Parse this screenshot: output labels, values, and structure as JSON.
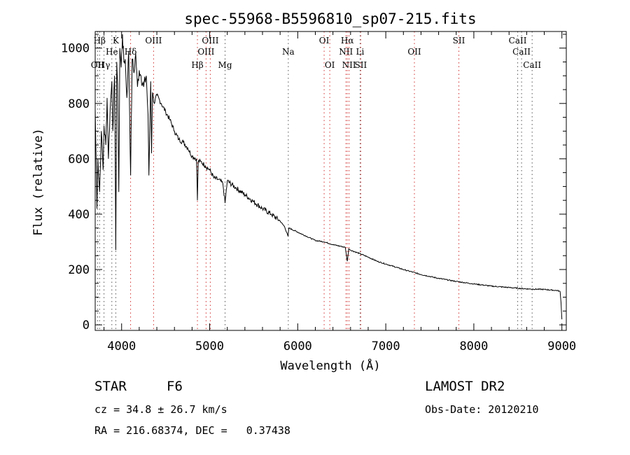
{
  "chart_data": {
    "type": "line",
    "title": "spec-55968-B5596810_sp07-215.fits",
    "xlabel": "Wavelength (Å)",
    "ylabel": "Flux (relative)",
    "xlim": [
      3700,
      9050
    ],
    "ylim": [
      -20,
      1060
    ],
    "xticks": [
      4000,
      5000,
      6000,
      7000,
      8000,
      9000
    ],
    "yticks": [
      0,
      200,
      400,
      600,
      800,
      1000
    ],
    "series": [
      {
        "x": [
          3700,
          3720,
          3730,
          3750,
          3770,
          3790,
          3800,
          3820,
          3835,
          3850,
          3870,
          3889,
          3900,
          3920,
          3934,
          3945,
          3955,
          3968,
          3980,
          3995,
          4010,
          4025,
          4040,
          4060,
          4080,
          4102,
          4120,
          4140,
          4160,
          4180,
          4200,
          4220,
          4250,
          4280,
          4300,
          4310,
          4330,
          4340,
          4350,
          4370,
          4400,
          4450,
          4500,
          4550,
          4600,
          4650,
          4700,
          4750,
          4800,
          4850,
          4861,
          4870,
          4900,
          4950,
          5000,
          5050,
          5100,
          5150,
          5175,
          5200,
          5300,
          5400,
          5500,
          5600,
          5700,
          5800,
          5850,
          5890,
          5900,
          6000,
          6100,
          6200,
          6300,
          6400,
          6500,
          6540,
          6563,
          6580,
          6600,
          6700,
          6800,
          6900,
          7000,
          7200,
          7400,
          7600,
          7800,
          8000,
          8200,
          8400,
          8600,
          8800,
          8950,
          8980,
          8990,
          9000
        ],
        "y": [
          780,
          420,
          600,
          480,
          700,
          560,
          720,
          650,
          820,
          600,
          780,
          880,
          700,
          900,
          270,
          950,
          870,
          480,
          1000,
          930,
          1050,
          950,
          960,
          820,
          990,
          540,
          960,
          910,
          980,
          860,
          920,
          900,
          860,
          900,
          760,
          540,
          880,
          620,
          840,
          800,
          830,
          800,
          770,
          740,
          700,
          670,
          660,
          640,
          610,
          600,
          450,
          590,
          590,
          575,
          560,
          530,
          525,
          510,
          440,
          520,
          495,
          470,
          445,
          420,
          400,
          375,
          355,
          320,
          350,
          335,
          320,
          305,
          300,
          290,
          283,
          280,
          230,
          275,
          270,
          258,
          245,
          230,
          220,
          200,
          182,
          168,
          157,
          148,
          140,
          135,
          130,
          128,
          124,
          120,
          80,
          20
        ]
      }
    ],
    "lines": [
      {
        "label": "Hβ",
        "w": 3750,
        "row": 0
      },
      {
        "label": "K",
        "w": 3934,
        "row": 0
      },
      {
        "label": "He",
        "w": 3889,
        "row": 1
      },
      {
        "label": "Hδ",
        "w": 4102,
        "row": 1
      },
      {
        "label": "OII",
        "w": 3727,
        "row": 2
      },
      {
        "label": "Hγ",
        "w": 3800,
        "row": 2
      },
      {
        "label": "OIII",
        "w": 4363,
        "row": 0
      },
      {
        "label": "OIII",
        "w": 5007,
        "row": 0
      },
      {
        "label": "OIII",
        "w": 4959,
        "row": 1
      },
      {
        "label": "Hβ",
        "w": 4861,
        "row": 2
      },
      {
        "label": "Mg",
        "w": 5175,
        "row": 2
      },
      {
        "label": "Na",
        "w": 5893,
        "row": 1
      },
      {
        "label": "OI",
        "w": 6300,
        "row": 0
      },
      {
        "label": "OI",
        "w": 6364,
        "row": 2
      },
      {
        "label": "Hα",
        "w": 6563,
        "row": 0
      },
      {
        "label": "NII",
        "w": 6548,
        "row": 1
      },
      {
        "label": "NII",
        "w": 6583,
        "row": 2
      },
      {
        "label": "Li",
        "w": 6708,
        "row": 1
      },
      {
        "label": "SII",
        "w": 6716,
        "row": 2
      },
      {
        "label": "OII",
        "w": 7325,
        "row": 1
      },
      {
        "label": "SII",
        "w": 7830,
        "row": 0
      },
      {
        "label": "CaII",
        "w": 8498,
        "row": 0
      },
      {
        "label": "CaII",
        "w": 8542,
        "row": 1
      },
      {
        "label": "CaII",
        "w": 8662,
        "row": 2
      }
    ],
    "line_colors": {
      "red": "#d23030",
      "black": "#555555"
    },
    "grid": false,
    "legend": "none"
  },
  "info": {
    "class_label": "STAR",
    "subclass": "F6",
    "survey": "LAMOST DR2",
    "cz": "cz = 34.8 ± 26.7 km/s",
    "obs_date": "Obs-Date: 20120210",
    "radec": "RA = 216.68374, DEC =   0.37438"
  }
}
